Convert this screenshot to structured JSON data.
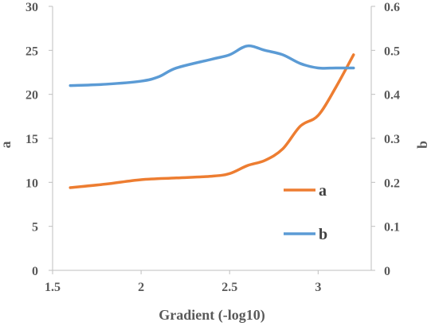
{
  "chart_data": {
    "type": "line",
    "title": "",
    "xlabel": "Gradient (-log10)",
    "ylabel": "a",
    "y2label": "b",
    "xlim": [
      1.5,
      3.3
    ],
    "ylim": [
      0,
      30
    ],
    "y2lim": [
      0,
      0.6
    ],
    "x_ticks": [
      "1.5",
      "2",
      "2.5",
      "3"
    ],
    "y_ticks": [
      "0",
      "5",
      "10",
      "15",
      "20",
      "25",
      "30"
    ],
    "y2_ticks": [
      "0",
      "0.1",
      "0.2",
      "0.3",
      "0.4",
      "0.5",
      "0.6"
    ],
    "grid": false,
    "legend_position": "lower-right",
    "series": [
      {
        "name": "a",
        "axis": "left",
        "color": "#ED7D31",
        "x": [
          1.6,
          1.8,
          2.0,
          2.2,
          2.4,
          2.5,
          2.6,
          2.7,
          2.8,
          2.9,
          3.0,
          3.1,
          3.2
        ],
        "y": [
          9.4,
          9.8,
          10.3,
          10.5,
          10.7,
          11.0,
          11.9,
          12.5,
          13.8,
          16.4,
          17.6,
          20.8,
          24.5
        ]
      },
      {
        "name": "b",
        "axis": "right",
        "color": "#5B9BD5",
        "x": [
          1.6,
          1.8,
          2.0,
          2.1,
          2.2,
          2.4,
          2.5,
          2.6,
          2.7,
          2.8,
          2.9,
          3.0,
          3.1,
          3.2
        ],
        "y": [
          0.42,
          0.423,
          0.43,
          0.44,
          0.46,
          0.48,
          0.49,
          0.51,
          0.5,
          0.49,
          0.47,
          0.46,
          0.46,
          0.46
        ]
      }
    ]
  }
}
